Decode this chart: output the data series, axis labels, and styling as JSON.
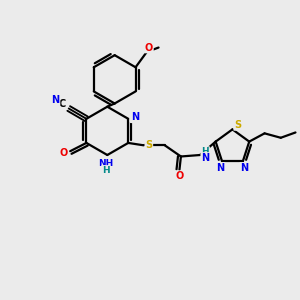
{
  "bg_color": "#ebebeb",
  "bond_color": "#000000",
  "bond_width": 1.6,
  "atom_colors": {
    "C": "#000000",
    "N": "#0000ee",
    "O": "#ee0000",
    "S": "#ccaa00",
    "H": "#008888"
  },
  "figsize": [
    3.0,
    3.0
  ],
  "dpi": 100
}
